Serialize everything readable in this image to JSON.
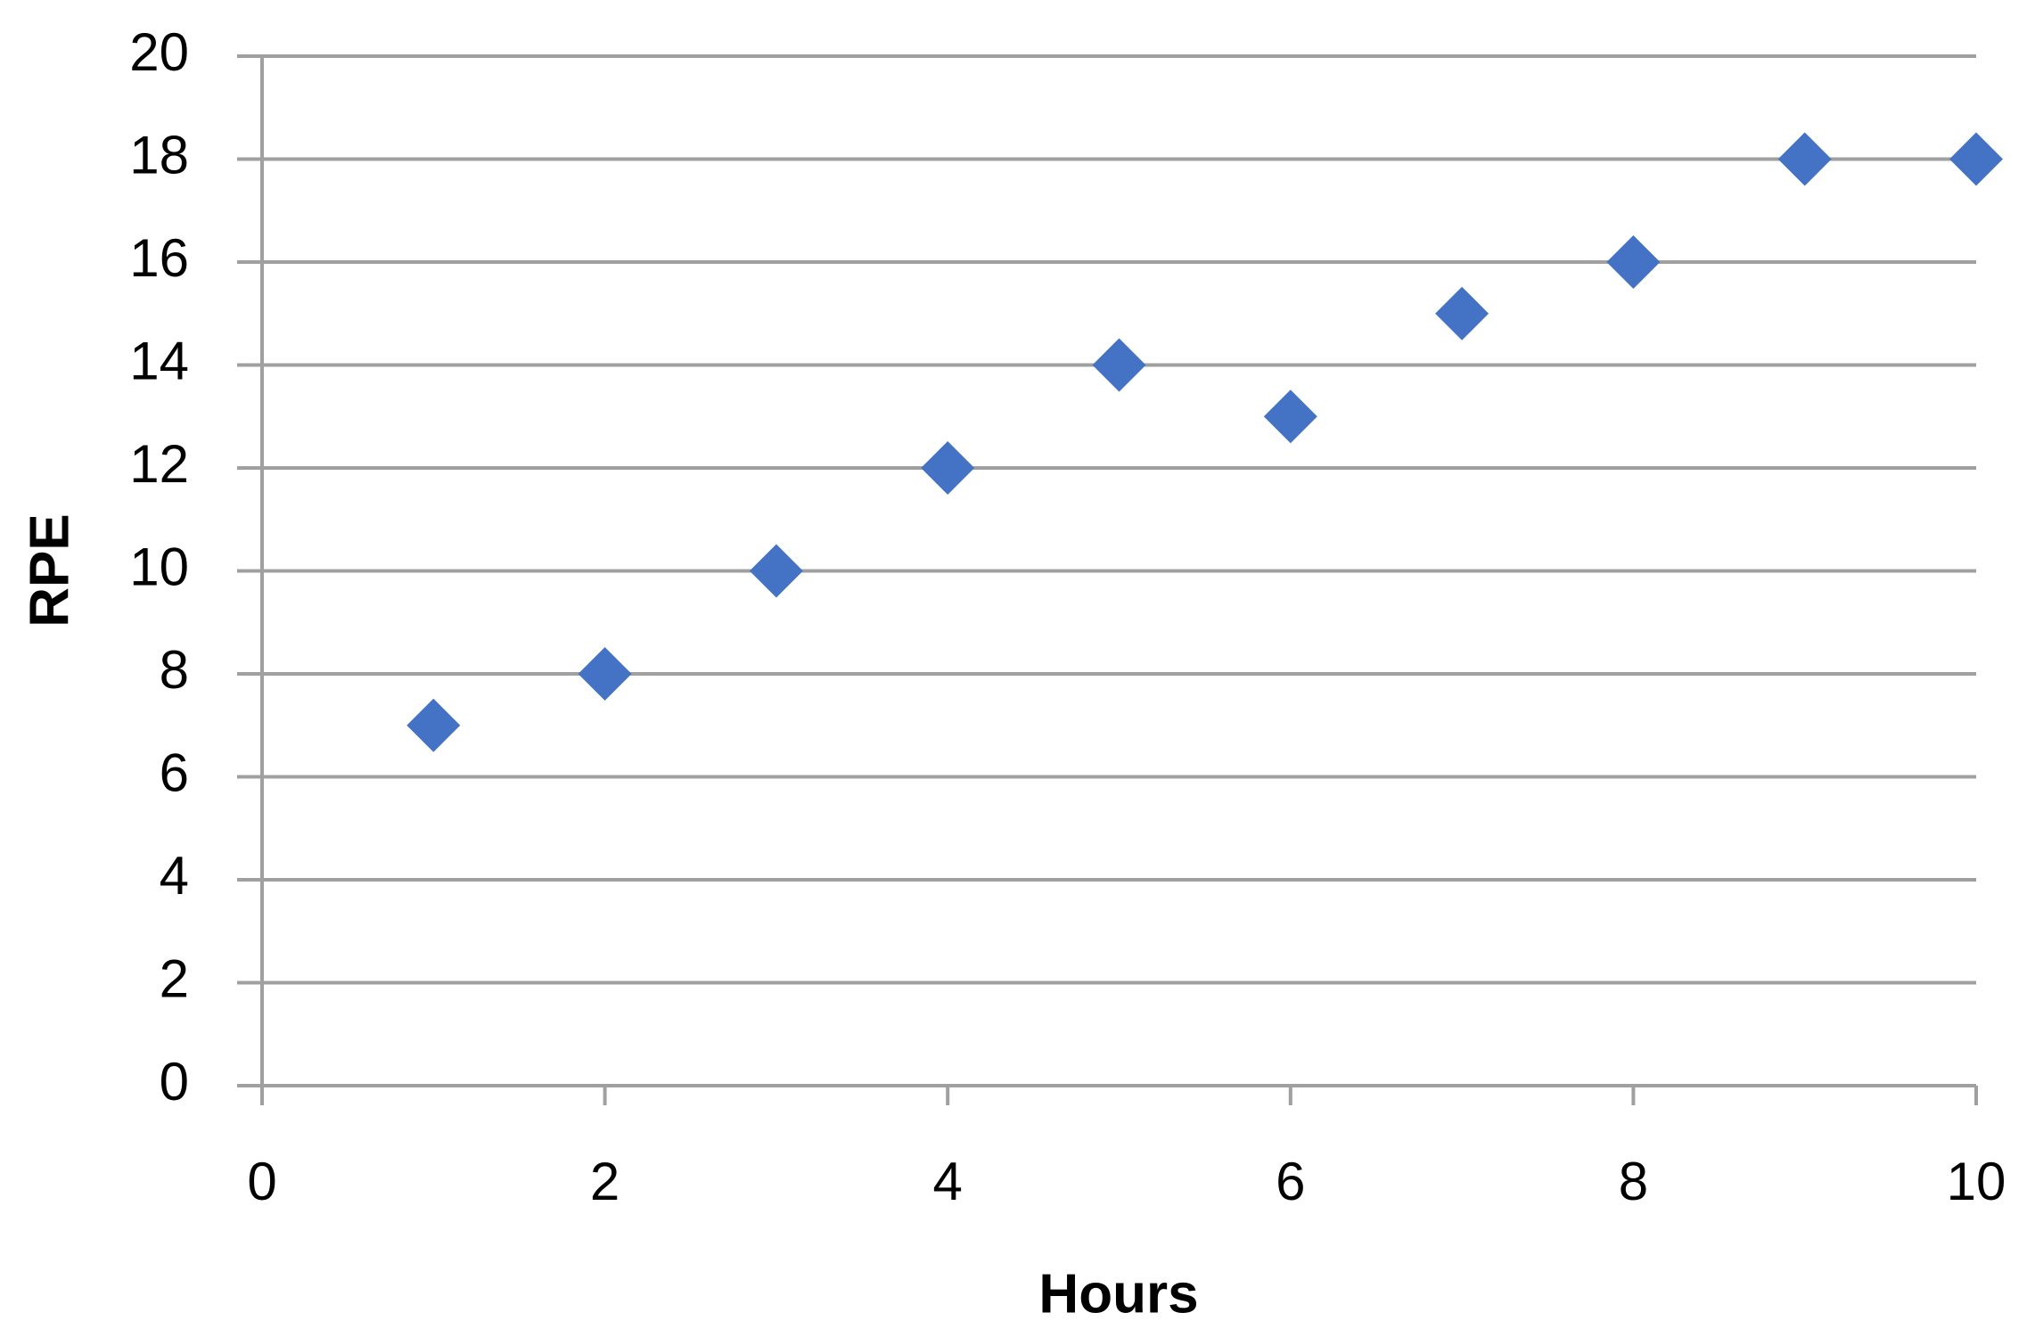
{
  "chart_data": {
    "type": "scatter",
    "x_label": "Hours",
    "y_label": "RPE",
    "x": [
      1,
      2,
      3,
      4,
      5,
      6,
      7,
      8,
      9,
      10
    ],
    "values": [
      7,
      8,
      10,
      12,
      14,
      13,
      15,
      16,
      18,
      18
    ],
    "color": "#4472c4",
    "marker": "diamond",
    "xlim": [
      0,
      10
    ],
    "xticks": [
      0,
      2,
      4,
      6,
      8,
      10
    ],
    "ylim": [
      0,
      20
    ],
    "yticks": [
      0,
      2,
      4,
      6,
      8,
      10,
      12,
      14,
      16,
      18,
      20
    ],
    "grid": true
  }
}
